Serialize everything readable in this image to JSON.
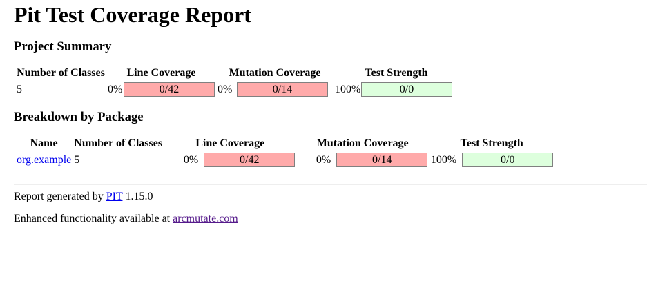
{
  "title": "Pit Test Coverage Report",
  "project_summary": {
    "heading": "Project Summary",
    "headers": {
      "classes": "Number of Classes",
      "line": "Line Coverage",
      "mutation": "Mutation Coverage",
      "strength": "Test Strength"
    },
    "classes": "5",
    "line_pct": "0%",
    "line_ratio": "0/42",
    "mutation_pct": "0%",
    "mutation_ratio": "0/14",
    "strength_pct": "100%",
    "strength_ratio": "0/0"
  },
  "breakdown": {
    "heading": "Breakdown by Package",
    "headers": {
      "name": "Name",
      "classes": "Number of Classes",
      "line": "Line Coverage",
      "mutation": "Mutation Coverage",
      "strength": "Test Strength"
    },
    "rows": [
      {
        "name": "org.example",
        "classes": "5",
        "line_pct": "0%",
        "line_ratio": "0/42",
        "mutation_pct": "0%",
        "mutation_ratio": "0/14",
        "strength_pct": "100%",
        "strength_ratio": "0/0"
      }
    ]
  },
  "footer": {
    "generated_prefix": "Report generated by",
    "pit_link": "PIT",
    "version": "1.15.0",
    "enhanced_prefix": "Enhanced functionality available at",
    "arcmutate_link": "arcmutate.com"
  },
  "colors": {
    "uncovered": "#ffaaaa",
    "covered": "#ddffdd",
    "link": "#0000ee",
    "visited_link": "#551a8b"
  }
}
